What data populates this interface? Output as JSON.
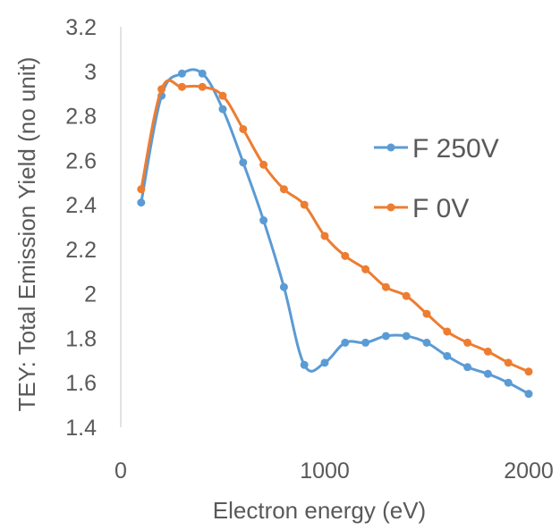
{
  "chart_data": {
    "type": "line",
    "xlabel": "Electron energy (eV)",
    "ylabel": "TEY: Total Emission Yield (no unit)",
    "xlim": [
      0,
      2000
    ],
    "ylim": [
      1.4,
      3.2
    ],
    "x_ticks": [
      "0",
      "1000",
      "2000"
    ],
    "y_ticks": [
      "1.4",
      "1.6",
      "1.8",
      "2",
      "2.2",
      "2.4",
      "2.6",
      "2.8",
      "3",
      "3.2"
    ],
    "grid": false,
    "legend_position": "right",
    "series": [
      {
        "name": "F 250V",
        "color": "#5B9BD5",
        "x": [
          100,
          200,
          300,
          400,
          500,
          600,
          700,
          800,
          900,
          1000,
          1100,
          1200,
          1300,
          1400,
          1500,
          1600,
          1700,
          1800,
          1900,
          2000
        ],
        "y": [
          2.41,
          2.89,
          2.99,
          2.99,
          2.83,
          2.59,
          2.33,
          2.03,
          1.68,
          1.69,
          1.78,
          1.78,
          1.81,
          1.81,
          1.78,
          1.72,
          1.67,
          1.64,
          1.6,
          1.55
        ]
      },
      {
        "name": "F 0V",
        "color": "#ED7D31",
        "x": [
          100,
          200,
          300,
          400,
          500,
          600,
          700,
          800,
          900,
          1000,
          1100,
          1200,
          1300,
          1400,
          1500,
          1600,
          1700,
          1800,
          1900,
          2000
        ],
        "y": [
          2.47,
          2.92,
          2.93,
          2.93,
          2.89,
          2.74,
          2.58,
          2.47,
          2.4,
          2.26,
          2.17,
          2.11,
          2.03,
          1.99,
          1.91,
          1.83,
          1.78,
          1.74,
          1.69,
          1.65
        ]
      }
    ]
  }
}
